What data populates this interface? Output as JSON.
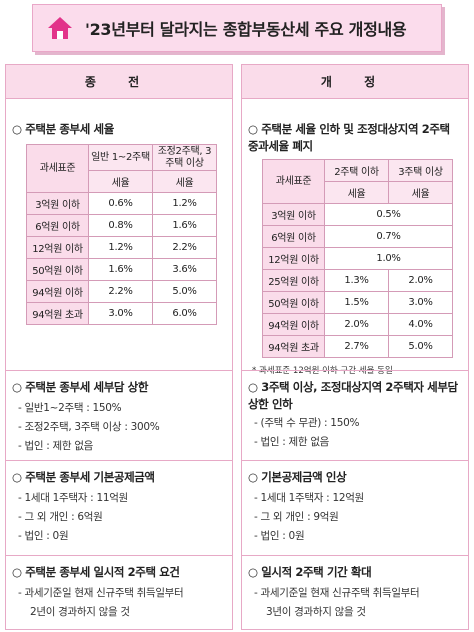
{
  "title": "'23년부터 달라지는 종합부동산세 주요 개정내용",
  "colors": {
    "pink_fill": "#fadcea",
    "pink_border": "#e7a9c6",
    "house_icon": "#e2338a"
  },
  "icons": {
    "title_icon": "house-icon"
  },
  "left": {
    "header": "종 전",
    "sec1": {
      "heading": "○ 주택분 종부세 세율",
      "table": {
        "col0": "과세표준",
        "col1": "일반 1~2주택",
        "col2": "조정2주택, 3주택 이상",
        "rate1": "세율",
        "rate2": "세율",
        "rows": [
          [
            "3억원 이하",
            "0.6%",
            "1.2%"
          ],
          [
            "6억원 이하",
            "0.8%",
            "1.6%"
          ],
          [
            "12억원 이하",
            "1.2%",
            "2.2%"
          ],
          [
            "50억원 이하",
            "1.6%",
            "3.6%"
          ],
          [
            "94억원 이하",
            "2.2%",
            "5.0%"
          ],
          [
            "94억원 초과",
            "3.0%",
            "6.0%"
          ]
        ]
      }
    },
    "sec2": {
      "heading": "○ 주택분 종부세 세부담 상한",
      "lines": [
        "- 일반1~2주택 : 150%",
        "- 조정2주택, 3주택 이상 : 300%",
        "- 법인 : 제한 없음"
      ]
    },
    "sec3": {
      "heading": "○ 주택분 종부세 기본공제금액",
      "lines": [
        "- 1세대 1주택자 : 11억원",
        "- 그 외 개인 : 6억원",
        "- 법인 : 0원"
      ]
    },
    "sec4": {
      "heading": "○ 주택분 종부세 일시적 2주택 요건",
      "lines": [
        "- 과세기준일 현재 신규주택 취득일부터",
        "2년이 경과하지 않을 것"
      ]
    }
  },
  "right": {
    "header": "개 정",
    "sec1": {
      "heading": "○ 주택분 세율 인하 및 조정대상지역 2주택 중과세율 폐지",
      "table": {
        "col0": "과세표준",
        "col1": "2주택 이하",
        "col2": "3주택 이상",
        "rate1": "세율",
        "rate2": "세율",
        "merged_rows": [
          [
            "3억원 이하",
            "0.5%"
          ],
          [
            "6억원 이하",
            "0.7%"
          ],
          [
            "12억원 이하",
            "1.0%"
          ]
        ],
        "rows": [
          [
            "25억원 이하",
            "1.3%",
            "2.0%"
          ],
          [
            "50억원 이하",
            "1.5%",
            "3.0%"
          ],
          [
            "94억원 이하",
            "2.0%",
            "4.0%"
          ],
          [
            "94억원 초과",
            "2.7%",
            "5.0%"
          ]
        ]
      },
      "note": "* 과세표준 12억원 이하 구간 세율 동일"
    },
    "sec2": {
      "heading": "○ 3주택 이상, 조정대상지역 2주택자 세부담 상한 인하",
      "lines": [
        "- (주택 수 무관) : 150%",
        "- 법인 : 제한 없음"
      ]
    },
    "sec3": {
      "heading": "○ 기본공제금액 인상",
      "lines": [
        "- 1세대 1주택자 : 12억원",
        "- 그 외 개인 : 9억원",
        "- 법인 : 0원"
      ]
    },
    "sec4": {
      "heading": "○ 일시적 2주택 기간 확대",
      "lines": [
        "- 과세기준일 현재 신규주택 취득일부터",
        "3년이 경과하지 않을 것"
      ]
    }
  }
}
